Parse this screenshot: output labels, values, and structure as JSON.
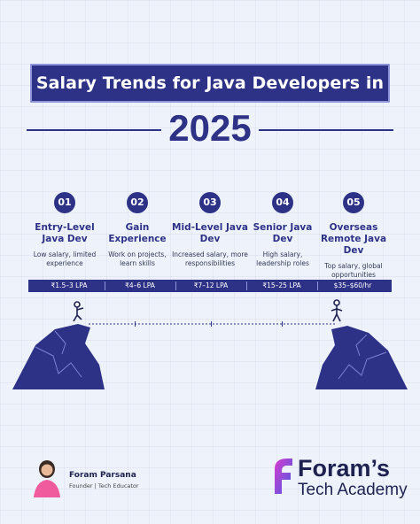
{
  "header": {
    "title": "Salary Trends for Java Developers in",
    "year": "2025"
  },
  "steps": [
    {
      "num": "01",
      "title": "Entry-Level Java Dev",
      "desc": "Low salary, limited experience",
      "salary": "₹1.5–3 LPA"
    },
    {
      "num": "02",
      "title": "Gain Experience",
      "desc": "Work on projects, learn skills",
      "salary": "₹4–6 LPA"
    },
    {
      "num": "03",
      "title": "Mid-Level Java Dev",
      "desc": "Increased salary, more responsibilities",
      "salary": "₹7–12 LPA"
    },
    {
      "num": "04",
      "title": "Senior Java Dev",
      "desc": "High salary, leadership roles",
      "salary": "₹15–25 LPA"
    },
    {
      "num": "05",
      "title": "Overseas Remote Java Dev",
      "desc": "Top salary, global opportunities",
      "salary": "$35–$60/hr"
    }
  ],
  "author": {
    "name": "Foram Parsana",
    "role": "Founder | Tech Educator"
  },
  "brand": {
    "line1": "Foram’s",
    "line2": "Tech Academy"
  },
  "colors": {
    "primary": "#2e3286",
    "accent_border": "#8f95d8",
    "logo_gradient": [
      "#d63bd0",
      "#4b5be0"
    ]
  }
}
